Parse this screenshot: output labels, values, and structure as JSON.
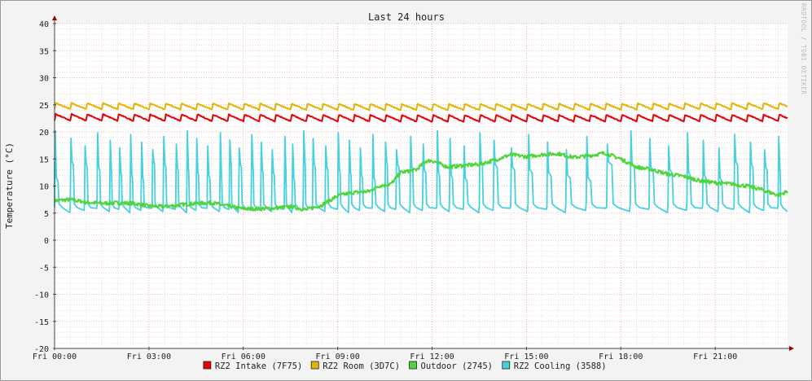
{
  "chart_data": {
    "type": "line",
    "title": "Last 24 hours",
    "ylabel": "Temperature (°C)",
    "watermark": "RRDTOOL / TOBI OETIKER",
    "ylim": [
      -20,
      40
    ],
    "y_ticks": [
      "40",
      "35",
      "30",
      "25",
      "20",
      "15",
      "10",
      "5",
      "0",
      "-5",
      "-10",
      "-15",
      "-20"
    ],
    "x_range_hours": [
      0,
      23.3
    ],
    "x_ticks": [
      {
        "h": 0,
        "label": "Fri 00:00"
      },
      {
        "h": 3,
        "label": "Fri 03:00"
      },
      {
        "h": 6,
        "label": "Fri 06:00"
      },
      {
        "h": 9,
        "label": "Fri 09:00"
      },
      {
        "h": 12,
        "label": "Fri 12:00"
      },
      {
        "h": 15,
        "label": "Fri 15:00"
      },
      {
        "h": 18,
        "label": "Fri 18:00"
      },
      {
        "h": 21,
        "label": "Fri 21:00"
      }
    ],
    "grid": true,
    "legend_position": "bottom",
    "series": [
      {
        "name": "RZ2 Intake (7F75)",
        "color": "#e8000b",
        "pattern": "sawtooth",
        "cycle_h": 0.5,
        "base": [
          [
            0,
            22.5
          ],
          [
            12,
            22.3
          ],
          [
            23.3,
            22.4
          ]
        ],
        "amp": 1.2
      },
      {
        "name": "RZ2 Room (3D7C)",
        "color": "#e5b400",
        "pattern": "sawtooth",
        "cycle_h": 0.5,
        "base": [
          [
            0,
            24.6
          ],
          [
            12,
            24.4
          ],
          [
            23.3,
            24.6
          ]
        ],
        "amp": 1.1
      },
      {
        "name": "Outdoor (2745)",
        "color": "#4fd53c",
        "pattern": "smooth",
        "points": [
          [
            0,
            7.3
          ],
          [
            0.5,
            7.5
          ],
          [
            1,
            7.0
          ],
          [
            1.5,
            6.8
          ],
          [
            2,
            6.9
          ],
          [
            2.5,
            6.8
          ],
          [
            3,
            6.3
          ],
          [
            3.5,
            6.2
          ],
          [
            4,
            6.5
          ],
          [
            4.5,
            6.8
          ],
          [
            5,
            6.9
          ],
          [
            5.5,
            6.3
          ],
          [
            6,
            5.8
          ],
          [
            6.5,
            5.8
          ],
          [
            7,
            5.9
          ],
          [
            7.5,
            6.2
          ],
          [
            8,
            5.6
          ],
          [
            8.5,
            6.5
          ],
          [
            9,
            8.2
          ],
          [
            9.5,
            8.8
          ],
          [
            10,
            9.0
          ],
          [
            10.3,
            10.0
          ],
          [
            10.7,
            10.4
          ],
          [
            11,
            12.5
          ],
          [
            11.5,
            13.0
          ],
          [
            11.8,
            14.6
          ],
          [
            12,
            14.7
          ],
          [
            12.5,
            13.5
          ],
          [
            13,
            13.8
          ],
          [
            13.5,
            14.0
          ],
          [
            14,
            14.8
          ],
          [
            14.5,
            15.8
          ],
          [
            15,
            15.4
          ],
          [
            15.5,
            15.8
          ],
          [
            16,
            16.0
          ],
          [
            16.5,
            15.3
          ],
          [
            17,
            15.6
          ],
          [
            17.5,
            16.1
          ],
          [
            18,
            15.0
          ],
          [
            18.5,
            13.5
          ],
          [
            19,
            13.0
          ],
          [
            19.5,
            12.2
          ],
          [
            20,
            11.8
          ],
          [
            20.5,
            11.0
          ],
          [
            21,
            10.6
          ],
          [
            21.5,
            10.4
          ],
          [
            22,
            10.0
          ],
          [
            22.5,
            9.3
          ],
          [
            23,
            8.3
          ],
          [
            23.3,
            9.0
          ]
        ],
        "jitter": 0.35
      },
      {
        "name": "RZ2 Cooling (3588)",
        "color": "#44d1e0",
        "pattern": "spikes",
        "spikes_h": [
          0,
          0.5,
          0.95,
          1.35,
          1.75,
          2.05,
          2.4,
          2.75,
          3.1,
          3.45,
          3.85,
          4.2,
          4.5,
          4.85,
          5.25,
          5.55,
          5.85,
          6.25,
          6.55,
          6.9,
          7.3,
          7.55,
          7.9,
          8.2,
          8.6,
          9.0,
          9.35,
          9.7,
          10.1,
          10.5,
          10.85,
          11.3,
          11.7,
          12.15,
          12.55,
          13.0,
          13.5,
          13.95,
          14.5,
          15.05,
          15.65,
          16.25,
          16.9,
          17.55,
          18.3,
          18.9,
          19.5,
          20.1,
          20.6,
          21.1,
          21.6,
          22.1,
          22.55,
          23.0
        ],
        "peak": 20.2,
        "floor": 5.5
      }
    ]
  }
}
